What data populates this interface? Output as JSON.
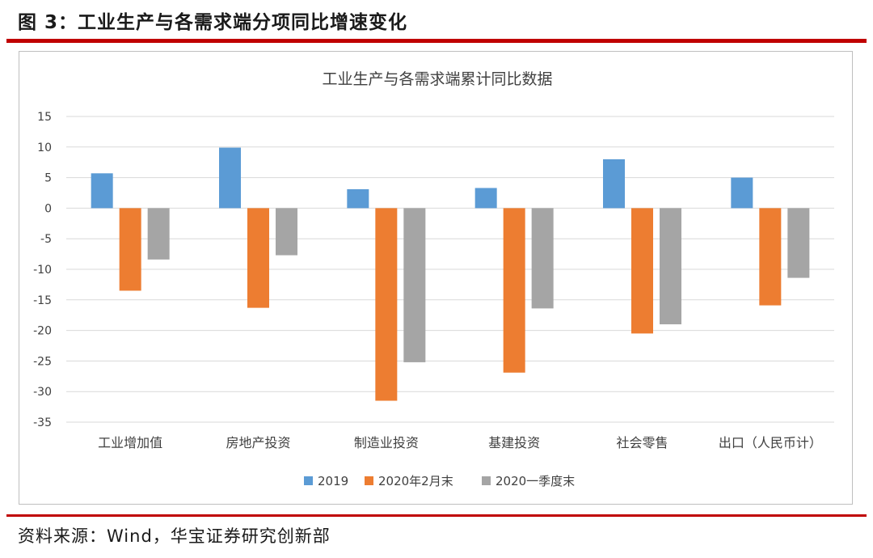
{
  "figure_title": "图 3：工业生产与各需求端分项同比增速变化",
  "source": "资料来源：Wind，华宝证券研究创新部",
  "chart_data": {
    "type": "bar",
    "title": "工业生产与各需求端累计同比数据",
    "xlabel": "",
    "ylabel": "",
    "ylim": [
      -35,
      15
    ],
    "yticks": [
      15,
      10,
      5,
      0,
      -5,
      -10,
      -15,
      -20,
      -25,
      -30,
      -35
    ],
    "grid": true,
    "legend_position": "bottom",
    "categories": [
      "工业增加值",
      "房地产投资",
      "制造业投资",
      "基建投资",
      "社会零售",
      "出口（人民币计）"
    ],
    "series": [
      {
        "name": "2019",
        "color": "#5b9bd5",
        "values": [
          5.7,
          9.9,
          3.1,
          3.3,
          8.0,
          5.0
        ]
      },
      {
        "name": "2020年2月末",
        "color": "#ed7d31",
        "values": [
          -13.5,
          -16.3,
          -31.5,
          -26.9,
          -20.5,
          -15.9
        ]
      },
      {
        "name": "2020一季度末",
        "color": "#a5a5a5",
        "values": [
          -8.4,
          -7.7,
          -25.2,
          -16.4,
          -19.0,
          -11.4
        ]
      }
    ]
  }
}
